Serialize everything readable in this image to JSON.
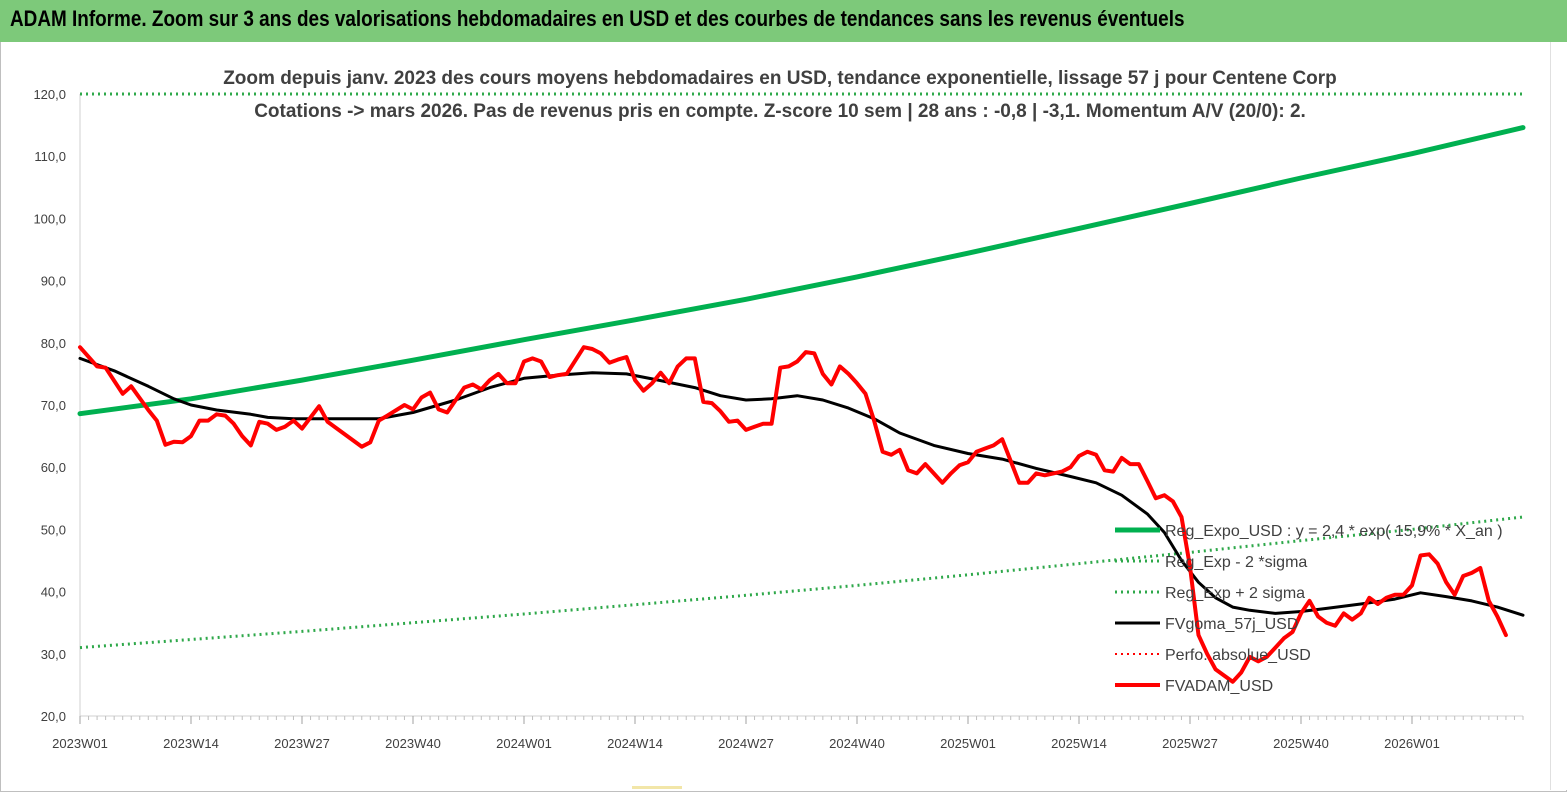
{
  "banner": {
    "title": "ADAM Informe. Zoom sur 3 ans des valorisations hebdomadaires en USD et des courbes de tendances sans les revenus éventuels"
  },
  "colors": {
    "banner_bg": "#7dc97a",
    "green": "#00b050",
    "green_dotted": "#2ea84a",
    "black": "#000000",
    "red": "#ff0000",
    "axis_text": "#404040"
  },
  "chart_data": {
    "type": "line",
    "title_line1": "Zoom depuis janv. 2023 des cours moyens hebdomadaires en USD, tendance exponentielle, lissage 57 j pour Centene Corp",
    "title_line2": "Cotations -> mars 2026. Pas de revenus pris en  compte. Z-score 10 sem  | 28 ans : -0,8 | -3,1. Momentum A/V (20/0): 2.",
    "ylim": [
      20,
      120
    ],
    "yticks": [
      "20,0",
      "30,0",
      "40,0",
      "50,0",
      "60,0",
      "70,0",
      "80,0",
      "90,0",
      "100,0",
      "110,0",
      "120,0"
    ],
    "xlim": [
      0,
      169
    ],
    "xticks": [
      {
        "label": "2023W01",
        "x": 0
      },
      {
        "label": "2023W14",
        "x": 13
      },
      {
        "label": "2023W27",
        "x": 26
      },
      {
        "label": "2023W40",
        "x": 39
      },
      {
        "label": "2024W01",
        "x": 52
      },
      {
        "label": "2024W14",
        "x": 65
      },
      {
        "label": "2024W27",
        "x": 78
      },
      {
        "label": "2024W40",
        "x": 91
      },
      {
        "label": "2025W01",
        "x": 104
      },
      {
        "label": "2025W14",
        "x": 117
      },
      {
        "label": "2025W27",
        "x": 130
      },
      {
        "label": "2025W40",
        "x": 143
      },
      {
        "label": "2026W01",
        "x": 156
      }
    ],
    "series": [
      {
        "name": "Reg_Expo_USD : y = 2,4 * exp( 15,9% * X_an )",
        "style": "solid",
        "color": "#00b050",
        "width": 5,
        "points": [
          [
            0,
            68.6
          ],
          [
            13,
            71.0
          ],
          [
            26,
            74.0
          ],
          [
            39,
            77.2
          ],
          [
            52,
            80.5
          ],
          [
            65,
            83.7
          ],
          [
            78,
            87.0
          ],
          [
            91,
            90.6
          ],
          [
            104,
            94.4
          ],
          [
            117,
            98.4
          ],
          [
            130,
            102.4
          ],
          [
            143,
            106.5
          ],
          [
            156,
            110.4
          ],
          [
            169,
            114.6
          ]
        ]
      },
      {
        "name": "Reg_Exp - 2 *sigma",
        "style": "dotted",
        "color": "#2ea84a",
        "width": 3,
        "points": [
          [
            0,
            31.0
          ],
          [
            13,
            32.3
          ],
          [
            26,
            33.6
          ],
          [
            39,
            35.0
          ],
          [
            52,
            36.4
          ],
          [
            65,
            37.9
          ],
          [
            78,
            39.4
          ],
          [
            91,
            41.0
          ],
          [
            104,
            42.7
          ],
          [
            117,
            44.5
          ],
          [
            130,
            46.3
          ],
          [
            143,
            48.2
          ],
          [
            156,
            50.0
          ],
          [
            169,
            52.0
          ]
        ]
      },
      {
        "name": "Reg_Exp + 2 sigma",
        "style": "dotted",
        "color": "#2ea84a",
        "width": 3,
        "points": [
          [
            0,
            120.0
          ],
          [
            169,
            120.0
          ]
        ]
      },
      {
        "name": "FVgoma_57j_USD",
        "style": "solid",
        "color": "#000000",
        "width": 3,
        "points": [
          [
            0,
            77.5
          ],
          [
            4,
            75.5
          ],
          [
            8,
            73.0
          ],
          [
            11,
            71.0
          ],
          [
            13,
            70.0
          ],
          [
            16,
            69.2
          ],
          [
            20,
            68.5
          ],
          [
            22,
            68.0
          ],
          [
            25,
            67.8
          ],
          [
            30,
            67.8
          ],
          [
            35,
            67.8
          ],
          [
            39,
            68.8
          ],
          [
            44,
            70.8
          ],
          [
            48,
            72.8
          ],
          [
            52,
            74.3
          ],
          [
            56,
            74.8
          ],
          [
            60,
            75.2
          ],
          [
            64,
            75.0
          ],
          [
            67,
            74.2
          ],
          [
            72,
            72.8
          ],
          [
            75,
            71.5
          ],
          [
            78,
            70.8
          ],
          [
            81,
            71.0
          ],
          [
            84,
            71.5
          ],
          [
            87,
            70.8
          ],
          [
            90,
            69.5
          ],
          [
            93,
            67.8
          ],
          [
            96,
            65.5
          ],
          [
            100,
            63.5
          ],
          [
            104,
            62.2
          ],
          [
            108,
            61.3
          ],
          [
            112,
            59.8
          ],
          [
            116,
            58.5
          ],
          [
            119,
            57.5
          ],
          [
            122,
            55.5
          ],
          [
            125,
            52.5
          ],
          [
            127,
            49.5
          ],
          [
            129,
            45.0
          ],
          [
            131,
            41.5
          ],
          [
            133,
            39.0
          ],
          [
            135,
            37.5
          ],
          [
            137,
            37.0
          ],
          [
            140,
            36.5
          ],
          [
            143,
            36.8
          ],
          [
            146,
            37.3
          ],
          [
            150,
            38.0
          ],
          [
            154,
            38.8
          ],
          [
            157,
            39.8
          ],
          [
            160,
            39.2
          ],
          [
            163,
            38.5
          ],
          [
            166,
            37.5
          ],
          [
            169,
            36.2
          ]
        ]
      },
      {
        "name": "Perfo. absolue_USD",
        "style": "dotted",
        "color": "#ff0000",
        "width": 2,
        "points": []
      },
      {
        "name": "FVADAM_USD",
        "style": "solid",
        "color": "#ff0000",
        "width": 4,
        "points": [
          [
            0,
            79.3
          ],
          [
            2,
            76.2
          ],
          [
            3,
            76.0
          ],
          [
            5,
            71.8
          ],
          [
            6,
            73.0
          ],
          [
            8,
            69.2
          ],
          [
            9,
            67.5
          ],
          [
            10,
            63.6
          ],
          [
            11,
            64.1
          ],
          [
            12,
            64.0
          ],
          [
            13,
            65.0
          ],
          [
            14,
            67.5
          ],
          [
            15,
            67.5
          ],
          [
            16,
            68.5
          ],
          [
            17,
            68.3
          ],
          [
            18,
            67.0
          ],
          [
            19,
            65.0
          ],
          [
            20,
            63.5
          ],
          [
            21,
            67.3
          ],
          [
            22,
            67.0
          ],
          [
            23,
            66.0
          ],
          [
            24,
            66.5
          ],
          [
            25,
            67.5
          ],
          [
            26,
            66.2
          ],
          [
            28,
            69.8
          ],
          [
            29,
            67.3
          ],
          [
            31,
            65.3
          ],
          [
            33,
            63.3
          ],
          [
            34,
            64.0
          ],
          [
            35,
            67.5
          ],
          [
            36,
            68.3
          ],
          [
            38,
            70.0
          ],
          [
            39,
            69.3
          ],
          [
            40,
            71.2
          ],
          [
            41,
            72.0
          ],
          [
            42,
            69.3
          ],
          [
            43,
            68.8
          ],
          [
            45,
            72.8
          ],
          [
            46,
            73.3
          ],
          [
            47,
            72.5
          ],
          [
            48,
            74.0
          ],
          [
            49,
            75.0
          ],
          [
            50,
            73.5
          ],
          [
            51,
            73.5
          ],
          [
            52,
            77.0
          ],
          [
            53,
            77.5
          ],
          [
            54,
            77.0
          ],
          [
            55,
            74.5
          ],
          [
            56,
            74.8
          ],
          [
            57,
            75.0
          ],
          [
            59,
            79.3
          ],
          [
            60,
            79.0
          ],
          [
            61,
            78.3
          ],
          [
            62,
            76.8
          ],
          [
            63,
            77.3
          ],
          [
            64,
            77.7
          ],
          [
            65,
            74.0
          ],
          [
            66,
            72.3
          ],
          [
            67,
            73.5
          ],
          [
            68,
            75.2
          ],
          [
            69,
            73.5
          ],
          [
            70,
            76.2
          ],
          [
            71,
            77.5
          ],
          [
            72,
            77.5
          ],
          [
            73,
            70.5
          ],
          [
            74,
            70.3
          ],
          [
            75,
            69.0
          ],
          [
            76,
            67.3
          ],
          [
            77,
            67.5
          ],
          [
            78,
            66.0
          ],
          [
            79,
            66.5
          ],
          [
            80,
            67.0
          ],
          [
            81,
            67.0
          ],
          [
            82,
            76.0
          ],
          [
            83,
            76.2
          ],
          [
            84,
            77.0
          ],
          [
            85,
            78.5
          ],
          [
            86,
            78.3
          ],
          [
            87,
            75.0
          ],
          [
            88,
            73.3
          ],
          [
            89,
            76.2
          ],
          [
            90,
            75.0
          ],
          [
            91,
            73.5
          ],
          [
            92,
            71.8
          ],
          [
            93,
            67.5
          ],
          [
            94,
            62.5
          ],
          [
            95,
            62.0
          ],
          [
            96,
            62.8
          ],
          [
            97,
            59.5
          ],
          [
            98,
            59.0
          ],
          [
            99,
            60.5
          ],
          [
            100,
            59.0
          ],
          [
            101,
            57.5
          ],
          [
            102,
            59.0
          ],
          [
            103,
            60.3
          ],
          [
            104,
            60.8
          ],
          [
            105,
            62.5
          ],
          [
            106,
            63.0
          ],
          [
            107,
            63.5
          ],
          [
            108,
            64.5
          ],
          [
            109,
            61.0
          ],
          [
            110,
            57.5
          ],
          [
            111,
            57.5
          ],
          [
            112,
            59.0
          ],
          [
            113,
            58.7
          ],
          [
            114,
            59.0
          ],
          [
            115,
            59.3
          ],
          [
            116,
            60.0
          ],
          [
            117,
            61.8
          ],
          [
            118,
            62.5
          ],
          [
            119,
            62.0
          ],
          [
            120,
            59.5
          ],
          [
            121,
            59.3
          ],
          [
            122,
            61.5
          ],
          [
            123,
            60.5
          ],
          [
            124,
            60.5
          ],
          [
            125,
            57.8
          ],
          [
            126,
            55.0
          ],
          [
            127,
            55.5
          ],
          [
            128,
            54.5
          ],
          [
            129,
            52.0
          ],
          [
            130,
            44.0
          ],
          [
            131,
            33.0
          ],
          [
            132,
            30.0
          ],
          [
            133,
            27.5
          ],
          [
            134,
            26.5
          ],
          [
            135,
            25.5
          ],
          [
            136,
            27.0
          ],
          [
            137,
            29.5
          ],
          [
            138,
            28.8
          ],
          [
            139,
            29.5
          ],
          [
            140,
            31.0
          ],
          [
            141,
            32.5
          ],
          [
            142,
            33.5
          ],
          [
            143,
            36.5
          ],
          [
            144,
            38.5
          ],
          [
            145,
            36.0
          ],
          [
            146,
            35.0
          ],
          [
            147,
            34.5
          ],
          [
            148,
            36.5
          ],
          [
            149,
            35.5
          ],
          [
            150,
            36.5
          ],
          [
            151,
            39.0
          ],
          [
            152,
            38.0
          ],
          [
            153,
            39.0
          ],
          [
            154,
            39.5
          ],
          [
            155,
            39.5
          ],
          [
            156,
            41.0
          ],
          [
            157,
            45.8
          ],
          [
            158,
            46.0
          ],
          [
            159,
            44.5
          ],
          [
            160,
            41.5
          ],
          [
            161,
            39.5
          ],
          [
            162,
            42.5
          ],
          [
            163,
            43.0
          ],
          [
            164,
            43.8
          ],
          [
            165,
            38.5
          ],
          [
            166,
            36.0
          ],
          [
            167,
            33.0
          ]
        ]
      }
    ]
  }
}
